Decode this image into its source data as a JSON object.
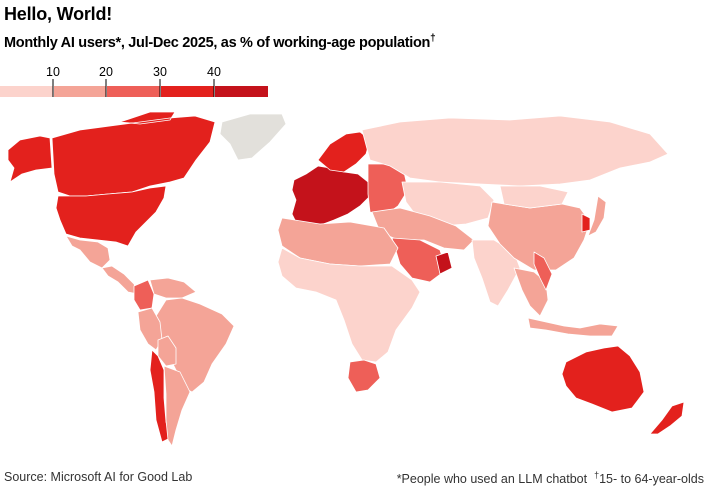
{
  "header": {
    "title": "Hello, World!",
    "subtitle": "Monthly AI users*, Jul-Dec 2025, as % of working-age population",
    "subtitle_mark": "†"
  },
  "legend": {
    "ticks": [
      "10",
      "20",
      "30",
      "40"
    ],
    "colors": [
      "#fcd3cc",
      "#f4a497",
      "#ee5f58",
      "#e3211d",
      "#c4121b"
    ]
  },
  "map": {
    "colors": {
      "no_data": "#e2e0db",
      "water": "#ffffff",
      "border": "#ffffff"
    },
    "regions": [
      {
        "name": "Canada",
        "bin": 3
      },
      {
        "name": "Alaska",
        "bin": 3
      },
      {
        "name": "Greenland",
        "bin": -1
      },
      {
        "name": "United States",
        "bin": 3
      },
      {
        "name": "Mexico",
        "bin": 1
      },
      {
        "name": "Central America",
        "bin": 1
      },
      {
        "name": "Colombia",
        "bin": 2
      },
      {
        "name": "Venezuela",
        "bin": 1
      },
      {
        "name": "Brazil",
        "bin": 1
      },
      {
        "name": "Peru",
        "bin": 1
      },
      {
        "name": "Bolivia",
        "bin": 1
      },
      {
        "name": "Chile",
        "bin": 3
      },
      {
        "name": "Argentina",
        "bin": 1
      },
      {
        "name": "Western Europe",
        "bin": 4
      },
      {
        "name": "Scandinavia",
        "bin": 3
      },
      {
        "name": "Eastern Europe",
        "bin": 2
      },
      {
        "name": "Russia",
        "bin": 0
      },
      {
        "name": "Central Asia",
        "bin": 0
      },
      {
        "name": "Middle East",
        "bin": 1
      },
      {
        "name": "Saudi Arabia",
        "bin": 2
      },
      {
        "name": "UAE",
        "bin": 4
      },
      {
        "name": "North Africa",
        "bin": 1
      },
      {
        "name": "Sub-Saharan Africa",
        "bin": 0
      },
      {
        "name": "South Africa",
        "bin": 2
      },
      {
        "name": "India",
        "bin": 0
      },
      {
        "name": "China",
        "bin": 1
      },
      {
        "name": "Mongolia",
        "bin": 0
      },
      {
        "name": "Southeast Asia",
        "bin": 1
      },
      {
        "name": "Vietnam",
        "bin": 2
      },
      {
        "name": "South Korea",
        "bin": 3
      },
      {
        "name": "Japan",
        "bin": 1
      },
      {
        "name": "Indonesia",
        "bin": 1
      },
      {
        "name": "Australia",
        "bin": 3
      },
      {
        "name": "New Zealand",
        "bin": 3
      }
    ]
  },
  "footer": {
    "source": "Source: Microsoft AI for Good Lab",
    "note1": "*People who used an LLM chatbot",
    "note2_mark": "†",
    "note2": "15- to 64-year-olds"
  }
}
